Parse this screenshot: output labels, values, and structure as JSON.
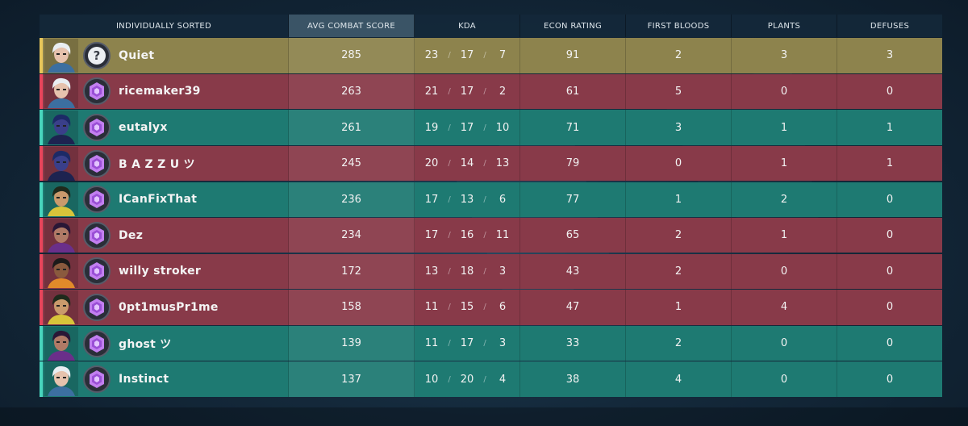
{
  "header": {
    "player_col": "INDIVIDUALLY SORTED",
    "acs": "AVG COMBAT SCORE",
    "kda": "KDA",
    "econ": "ECON RATING",
    "first_bloods": "FIRST BLOODS",
    "plants": "PLANTS",
    "defuses": "DEFUSES"
  },
  "colors": {
    "red": "#883a49",
    "teal": "#1e7a72",
    "gold": "#8d834d"
  },
  "rows": [
    {
      "name": "Quiet",
      "team": "gold",
      "rank_icon": "unrated-icon",
      "agent": "jett",
      "acs": "285",
      "k": "23",
      "d": "17",
      "a": "7",
      "econ": "91",
      "fb": "2",
      "plants": "3",
      "defuses": "3"
    },
    {
      "name": "ricemaker39",
      "team": "red",
      "rank_icon": "rank-icon",
      "agent": "jett",
      "acs": "263",
      "k": "21",
      "d": "17",
      "a": "2",
      "econ": "61",
      "fb": "5",
      "plants": "0",
      "defuses": "0"
    },
    {
      "name": "eutalyx",
      "team": "teal",
      "rank_icon": "rank-icon",
      "agent": "omen",
      "acs": "261",
      "k": "19",
      "d": "17",
      "a": "10",
      "econ": "71",
      "fb": "3",
      "plants": "1",
      "defuses": "1"
    },
    {
      "name": "B A Z Z U ツ",
      "team": "red",
      "rank_icon": "rank-icon",
      "agent": "omen",
      "acs": "245",
      "k": "20",
      "d": "14",
      "a": "13",
      "econ": "79",
      "fb": "0",
      "plants": "1",
      "defuses": "1"
    },
    {
      "name": "ICanFixThat",
      "team": "teal",
      "rank_icon": "rank-icon",
      "agent": "killjoy",
      "acs": "236",
      "k": "17",
      "d": "13",
      "a": "6",
      "econ": "77",
      "fb": "1",
      "plants": "2",
      "defuses": "0"
    },
    {
      "name": "Dez",
      "team": "red",
      "rank_icon": "rank-icon",
      "agent": "reyna",
      "acs": "234",
      "k": "17",
      "d": "16",
      "a": "11",
      "econ": "65",
      "fb": "2",
      "plants": "1",
      "defuses": "0"
    },
    {
      "name": "willy stroker",
      "team": "red",
      "rank_icon": "rank-icon",
      "agent": "phoenix",
      "acs": "172",
      "k": "13",
      "d": "18",
      "a": "3",
      "econ": "43",
      "fb": "2",
      "plants": "0",
      "defuses": "0"
    },
    {
      "name": "0pt1musPr1me",
      "team": "red",
      "rank_icon": "rank-icon",
      "agent": "killjoy",
      "acs": "158",
      "k": "11",
      "d": "15",
      "a": "6",
      "econ": "47",
      "fb": "1",
      "plants": "4",
      "defuses": "0"
    },
    {
      "name": "ghost ツ",
      "team": "teal",
      "rank_icon": "rank-icon",
      "agent": "reyna",
      "acs": "139",
      "k": "11",
      "d": "17",
      "a": "3",
      "econ": "33",
      "fb": "2",
      "plants": "0",
      "defuses": "0"
    },
    {
      "name": "Instinct",
      "team": "teal",
      "rank_icon": "rank-icon",
      "agent": "jett",
      "acs": "137",
      "k": "10",
      "d": "20",
      "a": "4",
      "econ": "38",
      "fb": "4",
      "plants": "0",
      "defuses": "0"
    }
  ]
}
